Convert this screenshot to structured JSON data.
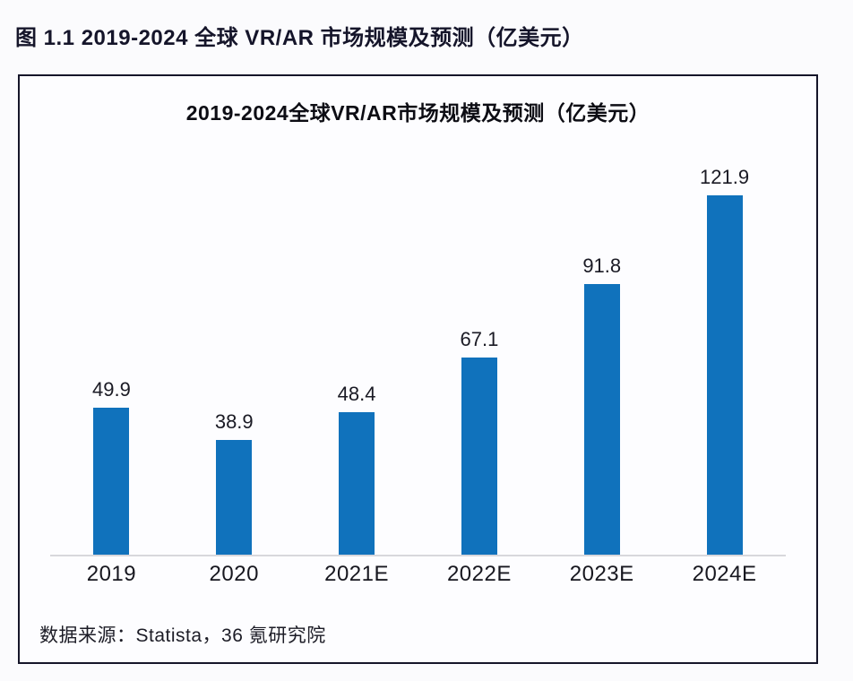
{
  "page": {
    "figure_caption": "图 1.1 2019-2024 全球 VR/AR 市场规模及预测（亿美元）",
    "source_note": "数据来源：Statista，36 氪研究院"
  },
  "chart_data": {
    "type": "bar",
    "title": "2019-2024全球VR/AR市场规模及预测（亿美元）",
    "categories": [
      "2019",
      "2020",
      "2021E",
      "2022E",
      "2023E",
      "2024E"
    ],
    "values": [
      49.9,
      38.9,
      48.4,
      67.1,
      91.8,
      121.9
    ],
    "xlabel": "",
    "ylabel": "",
    "unit": "亿美元",
    "ylim": [
      0,
      140
    ],
    "grid": false,
    "legend": "none",
    "bar_color": "#1072BC",
    "axis_line_color": "#d8d8dc"
  }
}
